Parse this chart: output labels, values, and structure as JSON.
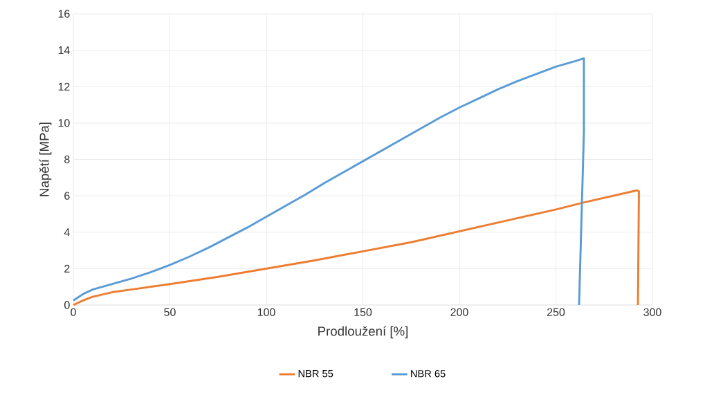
{
  "chart_data": {
    "type": "line",
    "xlabel": "Prodloužení [%]",
    "ylabel": "Napětí [MPa]",
    "xlim": [
      0,
      300
    ],
    "ylim": [
      0,
      16
    ],
    "xticks": [
      0,
      50,
      100,
      150,
      200,
      250,
      300
    ],
    "yticks": [
      0,
      2,
      4,
      6,
      8,
      10,
      12,
      14,
      16
    ],
    "grid": true,
    "legend": "bottom",
    "marker": "none",
    "line_style": "solid",
    "series": [
      {
        "name": "NBR 55",
        "color": "#ed7d31",
        "x": [
          0,
          5,
          10,
          20,
          30,
          50,
          75,
          100,
          125,
          150,
          175,
          200,
          225,
          250,
          265,
          292,
          293,
          292.5
        ],
        "values": [
          0,
          0.25,
          0.45,
          0.7,
          0.85,
          1.15,
          1.55,
          2.0,
          2.45,
          2.95,
          3.45,
          4.05,
          4.65,
          5.25,
          5.65,
          6.3,
          6.25,
          0
        ]
      },
      {
        "name": "NBR 65",
        "color": "#5b9bd5",
        "x": [
          0,
          5,
          10,
          20,
          30,
          40,
          50,
          60,
          70,
          80,
          90,
          100,
          110,
          120,
          130,
          140,
          150,
          160,
          170,
          180,
          190,
          200,
          210,
          220,
          230,
          240,
          250,
          260,
          264.5,
          264.5,
          262
        ],
        "values": [
          0.25,
          0.6,
          0.85,
          1.15,
          1.45,
          1.8,
          2.2,
          2.65,
          3.15,
          3.7,
          4.25,
          4.85,
          5.45,
          6.05,
          6.7,
          7.3,
          7.9,
          8.5,
          9.1,
          9.7,
          10.3,
          10.85,
          11.35,
          11.85,
          12.3,
          12.7,
          13.1,
          13.4,
          13.55,
          9.5,
          0
        ]
      }
    ]
  }
}
